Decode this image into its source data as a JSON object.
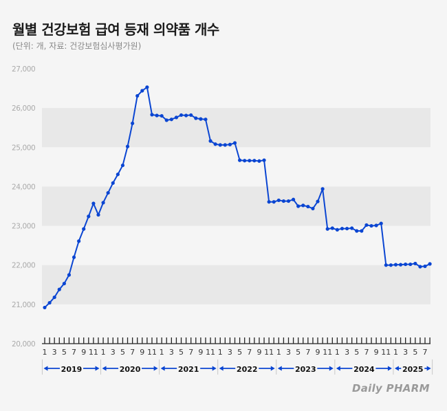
{
  "title": "월별 건강보험 급여 등재 의약품 개수",
  "subtitle": "(단위: 개, 자료: 건강보험심사평가원)",
  "logo_text": "Daily PHARM",
  "colors": {
    "line": "#0a45d2",
    "band": "#e8e8e8",
    "background": "#f5f5f5",
    "axis": "#222222"
  },
  "chart_data": {
    "type": "line",
    "title": "월별 건강보험 급여 등재 의약품 개수",
    "ylim": [
      20000,
      27000
    ],
    "yticks": [
      20000,
      21000,
      22000,
      23000,
      24000,
      25000,
      26000,
      27000
    ],
    "ytick_labels": [
      "20,000",
      "21,000",
      "22,000",
      "23,000",
      "24,000",
      "25,000",
      "26,000",
      "27,000"
    ],
    "grid": "alternating horizontal bands",
    "years": [
      {
        "label": "2019",
        "month_labels": [
          "1",
          "3",
          "5",
          "7",
          "9",
          "11"
        ]
      },
      {
        "label": "2020",
        "month_labels": [
          "1",
          "3",
          "5",
          "7",
          "9",
          "11"
        ]
      },
      {
        "label": "2021",
        "month_labels": [
          "1",
          "3",
          "5",
          "7",
          "9",
          "11"
        ]
      },
      {
        "label": "2022",
        "month_labels": [
          "1",
          "3",
          "5",
          "7",
          "9",
          "11"
        ]
      },
      {
        "label": "2023",
        "month_labels": [
          "1",
          "3",
          "5",
          "7",
          "9",
          "11"
        ]
      },
      {
        "label": "2024",
        "month_labels": [
          "1",
          "3",
          "5",
          "7",
          "9",
          "11"
        ]
      },
      {
        "label": "2025",
        "month_labels": [
          "1",
          "3",
          "5",
          "7"
        ]
      }
    ],
    "series": [
      {
        "values": [
          20920,
          21040,
          21180,
          21380,
          21530,
          21750,
          22200,
          22610,
          22920,
          23240,
          23570,
          23280,
          23590,
          23840,
          24090,
          24310,
          24540,
          25020,
          25610,
          26310,
          26440,
          26530,
          25830,
          25810,
          25800,
          25690,
          25710,
          25760,
          25820,
          25810,
          25820,
          25740,
          25720,
          25710,
          25160,
          25080,
          25060,
          25060,
          25070,
          25110,
          24670,
          24660,
          24660,
          24660,
          24650,
          24670,
          23610,
          23610,
          23650,
          23630,
          23630,
          23670,
          23500,
          23520,
          23490,
          23440,
          23620,
          23940,
          22920,
          22940,
          22900,
          22930,
          22930,
          22940,
          22870,
          22870,
          23020,
          23000,
          23010,
          23060,
          22000,
          22000,
          22010,
          22010,
          22020,
          22020,
          22040,
          21960,
          21970,
          22030
        ]
      }
    ]
  }
}
